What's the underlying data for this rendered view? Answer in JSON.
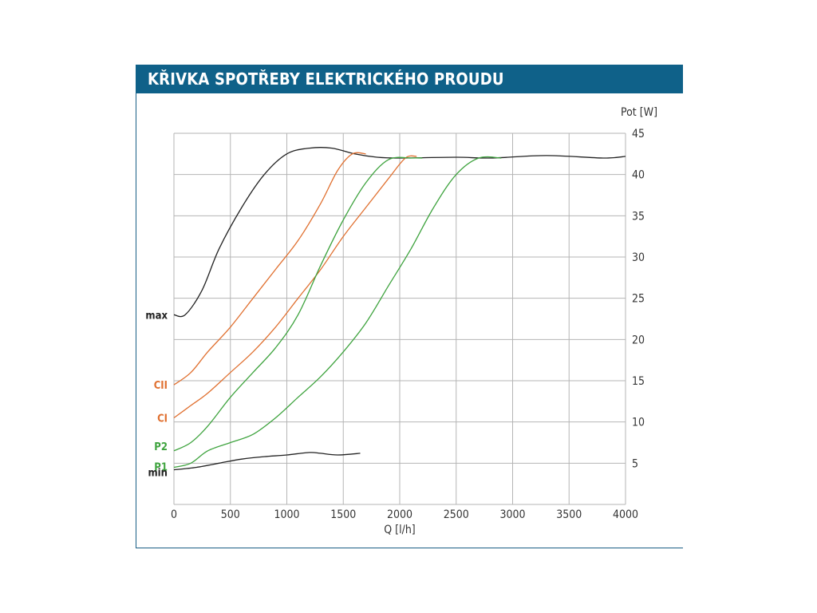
{
  "header": {
    "title": "KŘIVKA SPOTŘEBY ELEKTRICKÉHO PROUDU"
  },
  "chart_data": {
    "type": "line",
    "title": "KŘIVKA SPOTŘEBY ELEKTRICKÉHO PROUDU",
    "xlabel": "Q [l/h]",
    "ylabel": "Pot [W]",
    "xlim": [
      0,
      4000
    ],
    "ylim": [
      0,
      45
    ],
    "x_ticks": [
      0,
      500,
      1000,
      1500,
      2000,
      2500,
      3000,
      3500,
      4000
    ],
    "y_ticks": [
      5,
      10,
      15,
      20,
      25,
      30,
      35,
      40,
      45
    ],
    "y_axis_side": "right",
    "grid": true,
    "colors": {
      "black": "#222222",
      "orange": "#e07030",
      "green": "#3ea33e",
      "header": "#0f6189"
    },
    "series": [
      {
        "name": "max",
        "color": "#222222",
        "points": [
          [
            0,
            23
          ],
          [
            100,
            23
          ],
          [
            250,
            26
          ],
          [
            400,
            31
          ],
          [
            600,
            36
          ],
          [
            800,
            40
          ],
          [
            1000,
            42.5
          ],
          [
            1200,
            43.2
          ],
          [
            1400,
            43.2
          ],
          [
            1600,
            42.5
          ],
          [
            1800,
            42.1
          ],
          [
            2000,
            42
          ],
          [
            2500,
            42.1
          ],
          [
            2800,
            42
          ],
          [
            3300,
            42.3
          ],
          [
            3800,
            42
          ],
          [
            4000,
            42.2
          ]
        ]
      },
      {
        "name": "CII",
        "color": "#e07030",
        "points": [
          [
            0,
            14.5
          ],
          [
            150,
            16
          ],
          [
            300,
            18.5
          ],
          [
            500,
            21.5
          ],
          [
            700,
            25
          ],
          [
            900,
            28.5
          ],
          [
            1100,
            32
          ],
          [
            1300,
            36.5
          ],
          [
            1450,
            40.5
          ],
          [
            1580,
            42.5
          ],
          [
            1700,
            42.5
          ]
        ]
      },
      {
        "name": "CI",
        "color": "#e07030",
        "points": [
          [
            0,
            10.5
          ],
          [
            150,
            12
          ],
          [
            300,
            13.5
          ],
          [
            500,
            16
          ],
          [
            700,
            18.5
          ],
          [
            900,
            21.5
          ],
          [
            1100,
            25
          ],
          [
            1300,
            28.5
          ],
          [
            1500,
            32.5
          ],
          [
            1700,
            36
          ],
          [
            1900,
            39.5
          ],
          [
            2050,
            42
          ],
          [
            2150,
            42.2
          ]
        ]
      },
      {
        "name": "P2",
        "color": "#3ea33e",
        "points": [
          [
            0,
            6.5
          ],
          [
            150,
            7.5
          ],
          [
            300,
            9.5
          ],
          [
            500,
            13
          ],
          [
            700,
            16
          ],
          [
            900,
            19
          ],
          [
            1100,
            23
          ],
          [
            1300,
            29
          ],
          [
            1500,
            34.5
          ],
          [
            1700,
            39
          ],
          [
            1900,
            41.8
          ],
          [
            2100,
            42
          ],
          [
            2200,
            42
          ]
        ]
      },
      {
        "name": "P1",
        "color": "#3ea33e",
        "points": [
          [
            0,
            4.5
          ],
          [
            150,
            5
          ],
          [
            300,
            6.5
          ],
          [
            500,
            7.5
          ],
          [
            700,
            8.5
          ],
          [
            900,
            10.5
          ],
          [
            1100,
            13
          ],
          [
            1300,
            15.5
          ],
          [
            1500,
            18.5
          ],
          [
            1700,
            22
          ],
          [
            1900,
            26.5
          ],
          [
            2100,
            31
          ],
          [
            2300,
            36
          ],
          [
            2500,
            40
          ],
          [
            2700,
            42
          ],
          [
            2900,
            42
          ]
        ]
      },
      {
        "name": "min",
        "color": "#222222",
        "points": [
          [
            0,
            4.2
          ],
          [
            200,
            4.5
          ],
          [
            400,
            5
          ],
          [
            600,
            5.5
          ],
          [
            800,
            5.8
          ],
          [
            1000,
            6
          ],
          [
            1200,
            6.3
          ],
          [
            1300,
            6.2
          ],
          [
            1450,
            6
          ],
          [
            1650,
            6.2
          ]
        ]
      }
    ]
  }
}
